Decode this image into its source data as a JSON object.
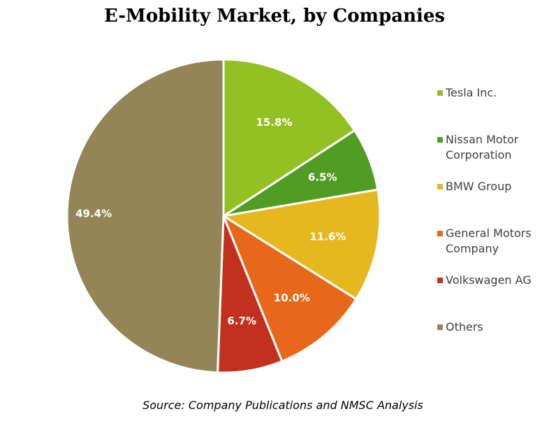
{
  "chart_data": {
    "type": "pie",
    "title": "E-Mobility Market, by Companies",
    "source": "Source: Company Publications and NMSC Analysis",
    "legend_position": "right",
    "slices": [
      {
        "name": "Tesla Inc.",
        "value": 15.8,
        "label": "15.8%",
        "color": "#93c022"
      },
      {
        "name": "Nissan Motor Corporation",
        "value": 6.5,
        "label": "6.5%",
        "color": "#519c23"
      },
      {
        "name": "BMW Group",
        "value": 11.6,
        "label": "11.6%",
        "color": "#e6b820"
      },
      {
        "name": "General Motors Company",
        "value": 10.0,
        "label": "10.0%",
        "color": "#e8681b"
      },
      {
        "name": "Volkswagen AG",
        "value": 6.7,
        "label": "6.7%",
        "color": "#c2311d"
      },
      {
        "name": "Others",
        "value": 49.4,
        "label": "49.4%",
        "color": "#938555"
      }
    ]
  }
}
